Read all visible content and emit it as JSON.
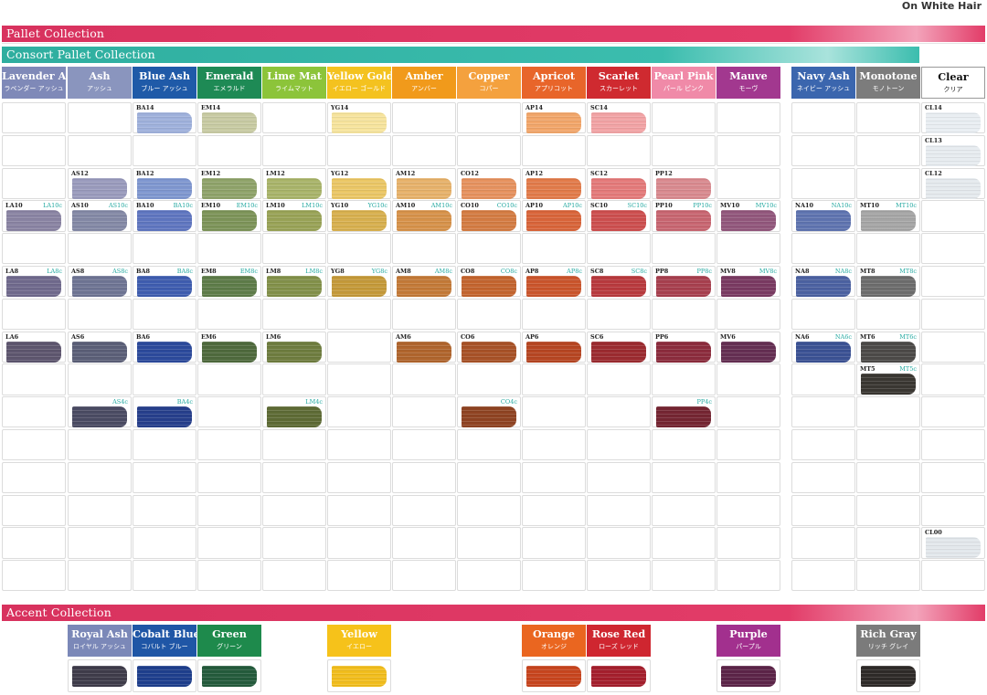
{
  "corner_label": "On White Hair",
  "sections": {
    "pallet": "Pallet Collection",
    "consort": "Consort Pallet Collection",
    "accent": "Accent Collection"
  },
  "columns": [
    {
      "en": "Lavender Ash",
      "jp": "ラベンダー アッシュ",
      "color": "#7f89b8",
      "light": false
    },
    {
      "en": "Ash",
      "jp": "アッシュ",
      "color": "#8a95be",
      "light": false
    },
    {
      "en": "Blue Ash",
      "jp": "ブルー アッシュ",
      "color": "#1f5aa8",
      "light": false
    },
    {
      "en": "Emerald",
      "jp": "エメラルド",
      "color": "#1e8a55",
      "light": false
    },
    {
      "en": "Lime Mat",
      "jp": "ライムマット",
      "color": "#8cc43a",
      "light": false
    },
    {
      "en": "Yellow Gold",
      "jp": "イエロー ゴールド",
      "color": "#f4c21f",
      "light": false
    },
    {
      "en": "Amber",
      "jp": "アンバー",
      "color": "#f19a1b",
      "light": false
    },
    {
      "en": "Copper",
      "jp": "コパー",
      "color": "#f4a13e",
      "light": false
    },
    {
      "en": "Apricot",
      "jp": "アプリコット",
      "color": "#e8652a",
      "light": false
    },
    {
      "en": "Scarlet",
      "jp": "スカーレット",
      "color": "#cf2a30",
      "light": false
    },
    {
      "en": "Pearl Pink",
      "jp": "パール ピンク",
      "color": "#f08aa8",
      "light": false
    },
    {
      "en": "Mauve",
      "jp": "モーヴ",
      "color": "#a2388f",
      "light": false
    },
    {
      "en": "Navy Ash",
      "jp": "ネイビー アッシュ",
      "color": "#3b66ae",
      "light": false
    },
    {
      "en": "Monotone",
      "jp": "モノトーン",
      "color": "#7c7c7c",
      "light": false
    },
    {
      "en": "Clear",
      "jp": "クリア",
      "color": "#ffffff",
      "light": true
    }
  ],
  "swatches": [
    {
      "col": 2,
      "row": 0,
      "code": "BA14",
      "ccode": "",
      "color": "#9fb1dc"
    },
    {
      "col": 3,
      "row": 0,
      "code": "EM14",
      "ccode": "",
      "color": "#c8cba3"
    },
    {
      "col": 5,
      "row": 0,
      "code": "YG14",
      "ccode": "",
      "color": "#f7e49d"
    },
    {
      "col": 8,
      "row": 0,
      "code": "AP14",
      "ccode": "",
      "color": "#f2a66a"
    },
    {
      "col": 9,
      "row": 0,
      "code": "SC14",
      "ccode": "",
      "color": "#f2a3a5"
    },
    {
      "col": 14,
      "row": 0,
      "code": "CL14",
      "ccode": "",
      "color": "#e9eef2"
    },
    {
      "col": 14,
      "row": 1,
      "code": "CL13",
      "ccode": "",
      "color": "#e7ecf0"
    },
    {
      "col": 1,
      "row": 2,
      "code": "AS12",
      "ccode": "",
      "color": "#9a9bbd"
    },
    {
      "col": 2,
      "row": 2,
      "code": "BA12",
      "ccode": "",
      "color": "#7f97d0"
    },
    {
      "col": 3,
      "row": 2,
      "code": "EM12",
      "ccode": "",
      "color": "#8fa36a"
    },
    {
      "col": 4,
      "row": 2,
      "code": "LM12",
      "ccode": "",
      "color": "#a9b46a"
    },
    {
      "col": 5,
      "row": 2,
      "code": "YG12",
      "ccode": "",
      "color": "#ebc766"
    },
    {
      "col": 6,
      "row": 2,
      "code": "AM12",
      "ccode": "",
      "color": "#e7b26b"
    },
    {
      "col": 7,
      "row": 2,
      "code": "CO12",
      "ccode": "",
      "color": "#e6925f"
    },
    {
      "col": 8,
      "row": 2,
      "code": "AP12",
      "ccode": "",
      "color": "#e27b4a"
    },
    {
      "col": 9,
      "row": 2,
      "code": "SC12",
      "ccode": "",
      "color": "#e47a7a"
    },
    {
      "col": 10,
      "row": 2,
      "code": "PP12",
      "ccode": "",
      "color": "#d98a8f"
    },
    {
      "col": 14,
      "row": 2,
      "code": "CL12",
      "ccode": "",
      "color": "#e5eaee"
    },
    {
      "col": 0,
      "row": 3,
      "code": "LA10",
      "ccode": "LA10c",
      "color": "#8a84a3"
    },
    {
      "col": 1,
      "row": 3,
      "code": "AS10",
      "ccode": "AS10c",
      "color": "#8489a6"
    },
    {
      "col": 2,
      "row": 3,
      "code": "BA10",
      "ccode": "BA10c",
      "color": "#5f76c0"
    },
    {
      "col": 3,
      "row": 3,
      "code": "EM10",
      "ccode": "EM10c",
      "color": "#7d9459"
    },
    {
      "col": 4,
      "row": 3,
      "code": "LM10",
      "ccode": "LM10c",
      "color": "#99a357"
    },
    {
      "col": 5,
      "row": 3,
      "code": "YG10",
      "ccode": "YG10c",
      "color": "#d8b04f"
    },
    {
      "col": 6,
      "row": 3,
      "code": "AM10",
      "ccode": "AM10c",
      "color": "#d7924a"
    },
    {
      "col": 7,
      "row": 3,
      "code": "CO10",
      "ccode": "CO10c",
      "color": "#d47c43"
    },
    {
      "col": 8,
      "row": 3,
      "code": "AP10",
      "ccode": "AP10c",
      "color": "#d9653a"
    },
    {
      "col": 9,
      "row": 3,
      "code": "SC10",
      "ccode": "SC10c",
      "color": "#cd4f4f"
    },
    {
      "col": 10,
      "row": 3,
      "code": "PP10",
      "ccode": "PP10c",
      "color": "#c86671"
    },
    {
      "col": 11,
      "row": 3,
      "code": "MV10",
      "ccode": "MV10c",
      "color": "#92577c"
    },
    {
      "col": 12,
      "row": 3,
      "code": "NA10",
      "ccode": "NA10c",
      "color": "#5f74b0"
    },
    {
      "col": 13,
      "row": 3,
      "code": "MT10",
      "ccode": "MT10c",
      "color": "#a6a6a6"
    },
    {
      "col": 0,
      "row": 5,
      "code": "LA8",
      "ccode": "LA8c",
      "color": "#706a8d"
    },
    {
      "col": 1,
      "row": 5,
      "code": "AS8",
      "ccode": "AS8c",
      "color": "#6f7594"
    },
    {
      "col": 2,
      "row": 5,
      "code": "BA8",
      "ccode": "BA8c",
      "color": "#3f5db0"
    },
    {
      "col": 3,
      "row": 5,
      "code": "EM8",
      "ccode": "EM8c",
      "color": "#5e7c49"
    },
    {
      "col": 4,
      "row": 5,
      "code": "LM8",
      "ccode": "LM8c",
      "color": "#83914a"
    },
    {
      "col": 5,
      "row": 5,
      "code": "YG8",
      "ccode": "YG8c",
      "color": "#c59a3a"
    },
    {
      "col": 6,
      "row": 5,
      "code": "AM8",
      "ccode": "AM8c",
      "color": "#c47a38"
    },
    {
      "col": 7,
      "row": 5,
      "code": "CO8",
      "ccode": "CO8c",
      "color": "#c4652f"
    },
    {
      "col": 8,
      "row": 5,
      "code": "AP8",
      "ccode": "AP8c",
      "color": "#cb552c"
    },
    {
      "col": 9,
      "row": 5,
      "code": "SC8",
      "ccode": "SC8c",
      "color": "#b93a3e"
    },
    {
      "col": 10,
      "row": 5,
      "code": "PP8",
      "ccode": "PP8c",
      "color": "#a8404f"
    },
    {
      "col": 11,
      "row": 5,
      "code": "MV8",
      "ccode": "MV8c",
      "color": "#7a3a62"
    },
    {
      "col": 12,
      "row": 5,
      "code": "NA8",
      "ccode": "NA8c",
      "color": "#4c62a2"
    },
    {
      "col": 13,
      "row": 5,
      "code": "MT8",
      "ccode": "MT8c",
      "color": "#6d6d6d"
    },
    {
      "col": 0,
      "row": 7,
      "code": "LA6",
      "ccode": "",
      "color": "#5e566f"
    },
    {
      "col": 1,
      "row": 7,
      "code": "AS6",
      "ccode": "",
      "color": "#5b5f78"
    },
    {
      "col": 2,
      "row": 7,
      "code": "BA6",
      "ccode": "",
      "color": "#2c4a9c"
    },
    {
      "col": 3,
      "row": 7,
      "code": "EM6",
      "ccode": "",
      "color": "#4f6a3d"
    },
    {
      "col": 4,
      "row": 7,
      "code": "LM6",
      "ccode": "",
      "color": "#6f7d3f"
    },
    {
      "col": 6,
      "row": 7,
      "code": "AM6",
      "ccode": "",
      "color": "#b0652d"
    },
    {
      "col": 7,
      "row": 7,
      "code": "CO6",
      "ccode": "",
      "color": "#a85227"
    },
    {
      "col": 8,
      "row": 7,
      "code": "AP6",
      "ccode": "",
      "color": "#b74622"
    },
    {
      "col": 9,
      "row": 7,
      "code": "SC6",
      "ccode": "",
      "color": "#9c2b30"
    },
    {
      "col": 10,
      "row": 7,
      "code": "PP6",
      "ccode": "",
      "color": "#8c2c3d"
    },
    {
      "col": 11,
      "row": 7,
      "code": "MV6",
      "ccode": "",
      "color": "#652f53"
    },
    {
      "col": 12,
      "row": 7,
      "code": "NA6",
      "ccode": "NA6c",
      "color": "#3b5294"
    },
    {
      "col": 13,
      "row": 7,
      "code": "MT6",
      "ccode": "MT6c",
      "color": "#4c4a48"
    },
    {
      "col": 13,
      "row": 8,
      "code": "MT5",
      "ccode": "MT5c",
      "color": "#3a3732"
    },
    {
      "col": 1,
      "row": 9,
      "code": "",
      "ccode": "AS4c",
      "color": "#4a4b63"
    },
    {
      "col": 2,
      "row": 9,
      "code": "",
      "ccode": "BA4c",
      "color": "#263f8c"
    },
    {
      "col": 4,
      "row": 9,
      "code": "",
      "ccode": "LM4c",
      "color": "#5e6b35"
    },
    {
      "col": 7,
      "row": 9,
      "code": "",
      "ccode": "CO4c",
      "color": "#8f4322"
    },
    {
      "col": 10,
      "row": 9,
      "code": "",
      "ccode": "PP4c",
      "color": "#752532"
    },
    {
      "col": 14,
      "row": 13,
      "code": "CL00",
      "ccode": "",
      "color": "#e3e8ec"
    }
  ],
  "accent": [
    {
      "col": 1,
      "en": "Royal Ash",
      "jp": "ロイヤル アッシュ",
      "color": "#7b88b8",
      "swatch": "#3f3c4a"
    },
    {
      "col": 2,
      "en": "Cobalt Blue",
      "jp": "コバルト ブルー",
      "color": "#1f56a6",
      "swatch": "#1e3f8d"
    },
    {
      "col": 3,
      "en": "Green",
      "jp": "グリーン",
      "color": "#1e8a4c",
      "swatch": "#245b3c"
    },
    {
      "col": 5,
      "en": "Yellow",
      "jp": "イエロー",
      "color": "#f6c21a",
      "swatch": "#f2be1d"
    },
    {
      "col": 8,
      "en": "Orange",
      "jp": "オレンジ",
      "color": "#ea6620",
      "swatch": "#c8451e"
    },
    {
      "col": 9,
      "en": "Rose Red",
      "jp": "ローズ レッド",
      "color": "#cf2630",
      "swatch": "#a51f2d"
    },
    {
      "col": 11,
      "en": "Purple",
      "jp": "パープル",
      "color": "#a2308e",
      "swatch": "#5c2448"
    },
    {
      "col": 13,
      "en": "Rich Gray",
      "jp": "リッチ グレイ",
      "color": "#7b7b7b",
      "swatch": "#2e2a28"
    }
  ]
}
